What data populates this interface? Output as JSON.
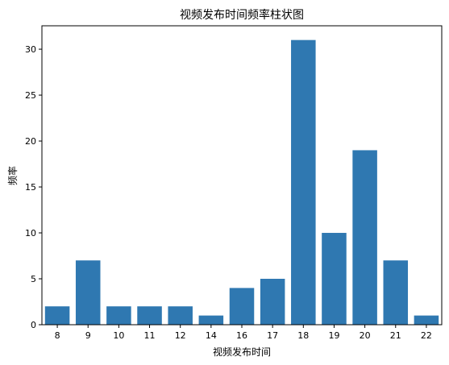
{
  "chart_data": {
    "type": "bar",
    "title": "视频发布时间频率柱状图",
    "xlabel": "视频发布时间",
    "ylabel": "频率",
    "categories": [
      "8",
      "9",
      "10",
      "11",
      "12",
      "14",
      "16",
      "17",
      "18",
      "19",
      "20",
      "21",
      "22"
    ],
    "values": [
      2,
      7,
      2,
      2,
      2,
      1,
      4,
      5,
      31,
      10,
      19,
      7,
      1
    ],
    "ylim": [
      0,
      32.55
    ],
    "yticks": [
      0,
      5,
      10,
      15,
      20,
      25,
      30
    ],
    "grid": false,
    "bar_color": "#2f78b1"
  }
}
